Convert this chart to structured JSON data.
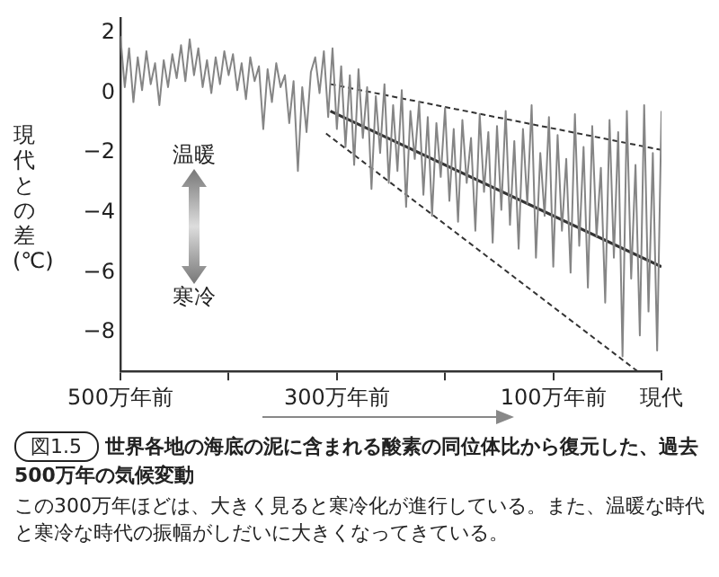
{
  "chart_data": {
    "type": "line",
    "title": "世界各地の海底の泥に含まれる酸素の同位体比から復元した、過去500万年の気候変動",
    "ylabel": "現代との差(℃)",
    "annotations": [
      "温暖",
      "寒冷",
      "図1.5",
      "この300万年ほどは、大きく見ると寒冷化が進行している。また、温暖な時代と寒冷な時代の振幅がしだいに大きくなってきている。"
    ],
    "xlim": [
      500,
      0
    ],
    "xticks": [
      {
        "value": 500,
        "label": "500万年前"
      },
      {
        "value": 400,
        "label": null
      },
      {
        "value": 300,
        "label": "300万年前"
      },
      {
        "value": 200,
        "label": null
      },
      {
        "value": 100,
        "label": "100万年前"
      },
      {
        "value": 0,
        "label": "現代"
      }
    ],
    "ylim": [
      -9.3,
      2.5
    ],
    "yticks": [
      2,
      0,
      {
        "value": -2,
        "label": "−2"
      },
      {
        "value": -4,
        "label": "−4"
      },
      {
        "value": -6,
        "label": "−6"
      },
      {
        "value": -8,
        "label": "−8"
      }
    ],
    "grid": false,
    "legend": false,
    "marker": "none",
    "series": [
      {
        "color": "#858585",
        "line_style": "solid",
        "x": [
          500,
          496,
          492,
          488,
          484,
          480,
          476,
          472,
          468,
          464,
          460,
          456,
          452,
          448,
          444,
          440,
          436,
          432,
          428,
          424,
          420,
          416,
          412,
          408,
          404,
          400,
          396,
          392,
          388,
          384,
          380,
          376,
          372,
          368,
          364,
          360,
          356,
          352,
          348,
          344,
          340,
          336,
          332,
          328,
          324,
          320,
          316,
          312,
          308,
          304,
          300,
          296,
          292,
          288,
          284,
          280,
          276,
          272,
          268,
          264,
          260,
          256,
          252,
          248,
          244,
          240,
          236,
          232,
          228,
          224,
          220,
          216,
          212,
          208,
          204,
          200,
          196,
          192,
          188,
          184,
          180,
          176,
          172,
          168,
          164,
          160,
          156,
          152,
          148,
          144,
          140,
          136,
          132,
          128,
          124,
          120,
          116,
          112,
          108,
          104,
          100,
          96,
          92,
          88,
          84,
          80,
          76,
          72,
          68,
          64,
          60,
          56,
          52,
          48,
          44,
          40,
          36,
          32,
          28,
          24,
          20,
          16,
          12,
          8,
          4,
          0
        ],
        "values": [
          1.9,
          0.2,
          1.5,
          -0.3,
          1.2,
          0.1,
          1.4,
          0.3,
          1.0,
          -0.4,
          1.1,
          0.2,
          1.3,
          0.5,
          1.6,
          0.4,
          1.8,
          0.6,
          1.5,
          0.2,
          1.1,
          0.0,
          1.2,
          0.3,
          1.4,
          0.6,
          1.3,
          0.1,
          1.0,
          -0.2,
          1.2,
          0.4,
          0.9,
          -1.2,
          0.8,
          -0.3,
          1.0,
          0.2,
          0.6,
          -1.0,
          0.4,
          -2.6,
          0.2,
          -1.3,
          0.7,
          1.2,
          0.0,
          1.4,
          -0.8,
          1.5,
          -1.2,
          0.9,
          -1.8,
          0.6,
          -2.4,
          0.8,
          -1.5,
          0.2,
          -3.2,
          -0.1,
          -2.0,
          0.3,
          -3.0,
          -0.4,
          -2.6,
          0.1,
          -3.8,
          -0.6,
          -2.2,
          -0.3,
          -3.4,
          -0.8,
          -4.1,
          -1.0,
          -2.8,
          -0.5,
          -3.6,
          -1.2,
          -4.3,
          -0.9,
          -3.0,
          -1.5,
          -4.6,
          -0.7,
          -3.3,
          -1.3,
          -5.0,
          -1.1,
          -3.9,
          -0.6,
          -4.4,
          -1.6,
          -5.2,
          -1.2,
          -3.7,
          -0.4,
          -5.5,
          -2.0,
          -4.1,
          -0.8,
          -5.8,
          -1.4,
          -4.6,
          -2.2,
          -6.0,
          -0.7,
          -5.1,
          -1.8,
          -6.5,
          -1.1,
          -4.8,
          -2.5,
          -7.0,
          -0.9,
          -5.5,
          -1.3,
          -8.8,
          -0.6,
          -6.2,
          -2.4,
          -8.1,
          -0.4,
          -7.3,
          -2.0,
          -8.6,
          -0.6
        ]
      },
      {
        "color": "#333333",
        "line_style": "solid",
        "x": [
          306,
          0
        ],
        "values": [
          -0.6,
          -5.8
        ]
      },
      {
        "color": "#333333",
        "line_style": "dashed",
        "x": [
          306,
          0
        ],
        "values": [
          0.3,
          -1.9
        ]
      },
      {
        "color": "#333333",
        "line_style": "dashed",
        "x": [
          310,
          22
        ],
        "values": [
          -1.35,
          -9.3
        ]
      }
    ]
  }
}
